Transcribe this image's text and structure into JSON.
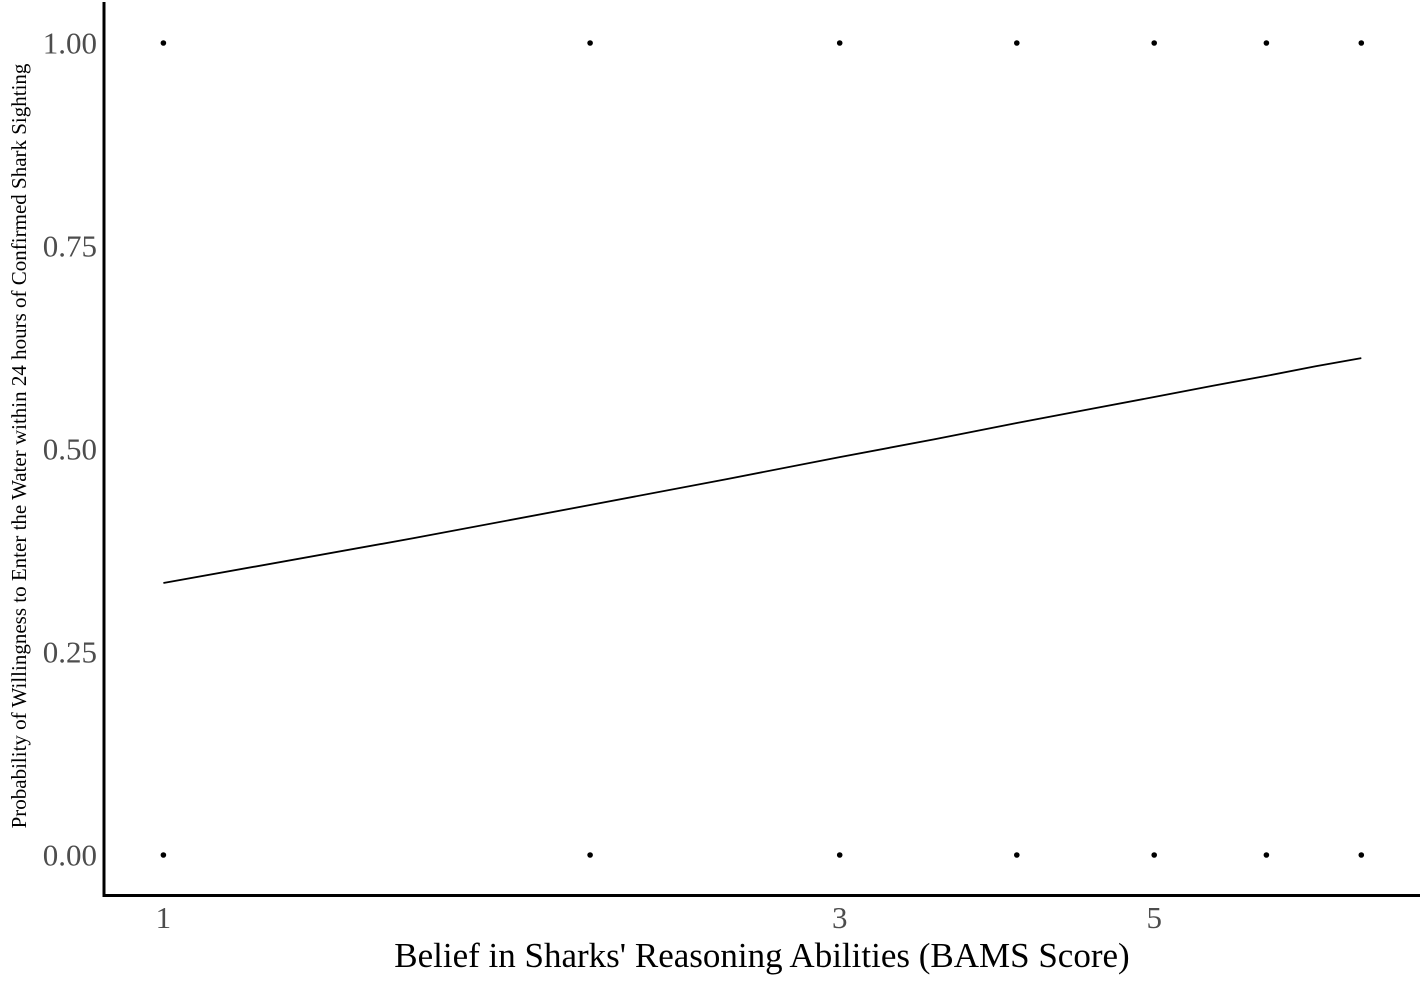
{
  "chart_data": {
    "type": "scatter",
    "title": "",
    "xlabel": "Belief in Sharks' Reasoning Abilities (BAMS Score)",
    "ylabel": "Probability of Willingness to Enter the Water within 24 hours of Confirmed Shark Sighting",
    "x_scale": "log10",
    "xlim": [
      0.908,
      7.7
    ],
    "ylim": [
      -0.05,
      1.05
    ],
    "grid": false,
    "legend": "none",
    "x_ticks": [
      {
        "value": 1,
        "label": "1"
      },
      {
        "value": 3,
        "label": "3"
      },
      {
        "value": 5,
        "label": "5"
      }
    ],
    "y_ticks": [
      {
        "value": 0.0,
        "label": "0.00"
      },
      {
        "value": 0.25,
        "label": "0.25"
      },
      {
        "value": 0.5,
        "label": "0.50"
      },
      {
        "value": 0.75,
        "label": "0.75"
      },
      {
        "value": 1.0,
        "label": "1.00"
      }
    ],
    "observed_points": {
      "description": "Binary outcome data: willingness (1) or not (0) at each BAMS score",
      "x_values": [
        1,
        2,
        3,
        4,
        5,
        6,
        7
      ],
      "y_rows": [
        0,
        1
      ]
    },
    "fit_line": {
      "name": "logistic-regression-fit",
      "points": [
        {
          "x": 1.0,
          "y": 0.335
        },
        {
          "x": 1.5,
          "y": 0.39
        },
        {
          "x": 2.0,
          "y": 0.431
        },
        {
          "x": 2.5,
          "y": 0.463
        },
        {
          "x": 3.0,
          "y": 0.49
        },
        {
          "x": 3.5,
          "y": 0.512
        },
        {
          "x": 4.0,
          "y": 0.532
        },
        {
          "x": 4.5,
          "y": 0.549
        },
        {
          "x": 5.0,
          "y": 0.564
        },
        {
          "x": 5.5,
          "y": 0.578
        },
        {
          "x": 6.0,
          "y": 0.59
        },
        {
          "x": 6.5,
          "y": 0.602
        },
        {
          "x": 7.0,
          "y": 0.612
        }
      ]
    },
    "colors": {
      "axis_line": "#000000",
      "tick_label": "#4d4d4d",
      "axis_title": "#000000",
      "point": "#000000",
      "fit_line": "#000000",
      "background": "#ffffff"
    }
  }
}
